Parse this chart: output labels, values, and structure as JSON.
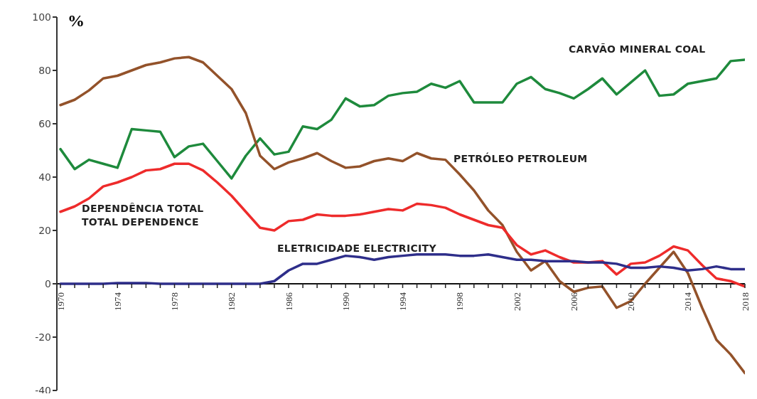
{
  "chart_data": {
    "type": "line",
    "ylabel": "%",
    "x": [
      1970,
      1971,
      1972,
      1973,
      1974,
      1975,
      1976,
      1977,
      1978,
      1979,
      1980,
      1981,
      1982,
      1983,
      1984,
      1985,
      1986,
      1987,
      1988,
      1989,
      1990,
      1991,
      1992,
      1993,
      1994,
      1995,
      1996,
      1997,
      1998,
      1999,
      2000,
      2001,
      2002,
      2003,
      2004,
      2005,
      2006,
      2007,
      2008,
      2009,
      2010,
      2011,
      2012,
      2013,
      2014,
      2015,
      2016,
      2017,
      2018
    ],
    "series": [
      {
        "name": "CARVÃO MINERAL COAL",
        "color": "#1e8a3c",
        "values": [
          50.5,
          43,
          46.5,
          45,
          43.5,
          58,
          57.5,
          57,
          47.5,
          51.5,
          52.5,
          46,
          39.5,
          48,
          54.5,
          48.5,
          49.5,
          59,
          58,
          61.5,
          69.5,
          66.5,
          67,
          70.5,
          71.5,
          72,
          75,
          73.5,
          76,
          68,
          68,
          68,
          75,
          77.5,
          73,
          71.5,
          69.5,
          73,
          77,
          71,
          75.5,
          80,
          70.5,
          71,
          75,
          76,
          77,
          83.5,
          84
        ]
      },
      {
        "name": "PETRÓLEO PETROLEUM",
        "color": "#93522a",
        "values": [
          67,
          69,
          72.5,
          77,
          78,
          80,
          82,
          83,
          84.5,
          85,
          83,
          78,
          73,
          64,
          48,
          43,
          45.5,
          47,
          49,
          46,
          43.5,
          44,
          46,
          47,
          46,
          49,
          47,
          46.5,
          41,
          35,
          27.5,
          22,
          12,
          5,
          8.5,
          1,
          -3,
          -1.5,
          -1,
          -9,
          -6.5,
          0,
          6,
          12,
          4,
          -9,
          -21,
          -26.5,
          -33.5
        ]
      },
      {
        "name": "DEPENDÊNCIA TOTAL TOTAL DEPENDENCE",
        "color": "#ee2b2b",
        "values": [
          27,
          29,
          32,
          36.5,
          38,
          40,
          42.5,
          43,
          45,
          45,
          42.5,
          38,
          33,
          27,
          21,
          20,
          23.5,
          24,
          26,
          25.5,
          25.5,
          26,
          27,
          28,
          27.5,
          30,
          29.5,
          28.5,
          26,
          24,
          22,
          21,
          14.5,
          11,
          12.5,
          10,
          8,
          8,
          8.5,
          3.5,
          7.5,
          8,
          10.5,
          14,
          12.5,
          7,
          2,
          1,
          -1
        ]
      },
      {
        "name": "ELETRICIDADE ELECTRICITY",
        "color": "#2e2e8a",
        "values": [
          0,
          0,
          0,
          0,
          0.3,
          0.3,
          0.3,
          0,
          0,
          0,
          0,
          0,
          0,
          0,
          0,
          1,
          5,
          7.5,
          7.5,
          9,
          10.5,
          10,
          9,
          10,
          10.5,
          11,
          11,
          11,
          10.5,
          10.5,
          11,
          10,
          9,
          9,
          8.5,
          8.5,
          8.5,
          8,
          8,
          7.5,
          6,
          6,
          6.5,
          6,
          5,
          5.5,
          6.5,
          5.5,
          5.5
        ]
      }
    ],
    "xlim": [
      1969.75,
      2018
    ],
    "xticks": [
      1970,
      {
        "value": 1971,
        "label": null
      },
      {
        "value": 1972,
        "label": null
      },
      {
        "value": 1973,
        "label": null
      },
      1974,
      {
        "value": 1975,
        "label": null
      },
      {
        "value": 1976,
        "label": null
      },
      {
        "value": 1977,
        "label": null
      },
      1978,
      {
        "value": 1979,
        "label": null
      },
      {
        "value": 1980,
        "label": null
      },
      {
        "value": 1981,
        "label": null
      },
      1982,
      {
        "value": 1983,
        "label": null
      },
      {
        "value": 1984,
        "label": null
      },
      {
        "value": 1985,
        "label": null
      },
      1986,
      {
        "value": 1987,
        "label": null
      },
      {
        "value": 1988,
        "label": null
      },
      {
        "value": 1989,
        "label": null
      },
      1990,
      {
        "value": 1991,
        "label": null
      },
      {
        "value": 1992,
        "label": null
      },
      {
        "value": 1993,
        "label": null
      },
      1994,
      {
        "value": 1995,
        "label": null
      },
      {
        "value": 1996,
        "label": null
      },
      {
        "value": 1997,
        "label": null
      },
      1998,
      {
        "value": 1999,
        "label": null
      },
      {
        "value": 2000,
        "label": null
      },
      {
        "value": 2001,
        "label": null
      },
      2002,
      {
        "value": 2003,
        "label": null
      },
      {
        "value": 2004,
        "label": null
      },
      {
        "value": 2005,
        "label": null
      },
      2006,
      {
        "value": 2007,
        "label": null
      },
      {
        "value": 2008,
        "label": null
      },
      {
        "value": 2009,
        "label": null
      },
      2010,
      {
        "value": 2011,
        "label": null
      },
      {
        "value": 2012,
        "label": null
      },
      {
        "value": 2013,
        "label": null
      },
      2014,
      {
        "value": 2015,
        "label": null
      },
      {
        "value": 2016,
        "label": null
      },
      {
        "value": 2017,
        "label": null
      },
      2018
    ],
    "ylim": [
      -40,
      100
    ],
    "yticks": [
      -40,
      -20,
      0,
      20,
      40,
      60,
      80,
      100
    ],
    "grid": false,
    "legend": false,
    "marker": "none",
    "line_style": "solid"
  }
}
